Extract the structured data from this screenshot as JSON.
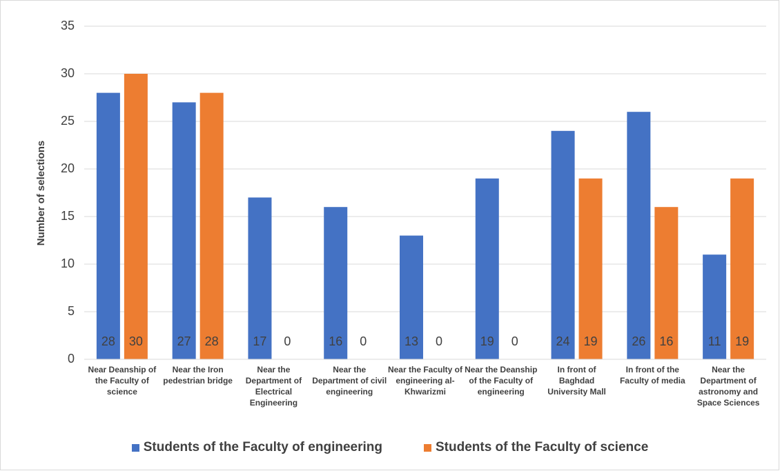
{
  "chart_data": {
    "type": "bar",
    "y_label": "Number of selections",
    "categories": [
      "Near Deanship of the Faculty of science",
      "Near the Iron pedestrian bridge",
      "Near the Department of Electrical Engineering",
      "Near the Department of civil engineering",
      "Near the Faculty of engineering al-Khwarizmi",
      "Near the Deanship of the Faculty of engineering",
      "In front of Baghdad University Mall",
      "In front of the Faculty of media",
      "Near the Department of astronomy and Space Sciences"
    ],
    "series": [
      {
        "name": "Students of the Faculty of engineering",
        "color": "#4472c4",
        "values": [
          28,
          27,
          17,
          16,
          13,
          19,
          24,
          26,
          11
        ]
      },
      {
        "name": "Students of the Faculty of science",
        "color": "#ed7d31",
        "values": [
          30,
          28,
          0,
          0,
          0,
          0,
          19,
          16,
          19
        ]
      }
    ],
    "ylim": [
      0,
      35
    ],
    "yticks": [
      0,
      5,
      10,
      15,
      20,
      25,
      30,
      35
    ],
    "grid": true,
    "legend": "bottom"
  }
}
